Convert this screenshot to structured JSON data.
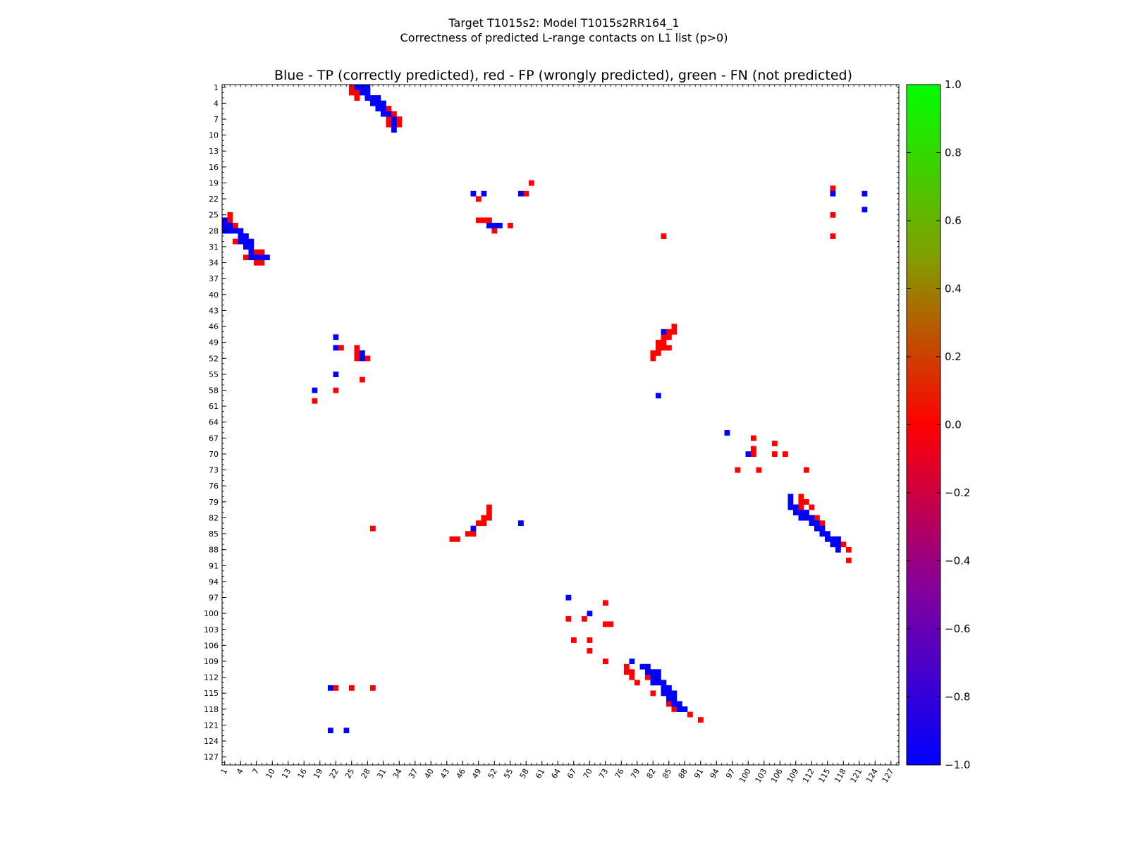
{
  "chart_data": {
    "type": "heatmap",
    "title": "Target T1015s2: Model T1015s2RR164_1",
    "title_line2": "Correctness of predicted L-range contacts on L1 list (p>0)",
    "subtitle": "Blue - TP (correctly predicted), red - FP (wrongly predicted), green - FN (not predicted)",
    "xlabel": "",
    "ylabel": "",
    "axis_range": [
      1,
      128
    ],
    "tick_labels": [
      "1",
      "4",
      "7",
      "10",
      "13",
      "16",
      "19",
      "22",
      "25",
      "28",
      "31",
      "34",
      "37",
      "40",
      "43",
      "46",
      "49",
      "52",
      "55",
      "58",
      "61",
      "64",
      "67",
      "70",
      "73",
      "76",
      "79",
      "82",
      "85",
      "88",
      "91",
      "94",
      "97",
      "100",
      "103",
      "106",
      "109",
      "112",
      "115",
      "118",
      "121",
      "124",
      "127"
    ],
    "colorbar": {
      "min": -1.0,
      "max": 1.0,
      "tick_labels": [
        "1.0",
        "0.8",
        "0.6",
        "0.4",
        "0.2",
        "0.0",
        "−0.2",
        "−0.4",
        "−0.6",
        "−0.8",
        "−1.0"
      ],
      "tick_values": [
        1.0,
        0.8,
        0.6,
        0.4,
        0.2,
        0.0,
        -0.2,
        -0.4,
        -0.6,
        -0.8,
        -1.0
      ],
      "colors": {
        "top": "#00ff00",
        "upper_mid": "#80a000",
        "mid": "#ff0000",
        "lower_mid": "#8000a0",
        "bottom": "#0000ff"
      }
    },
    "legend": {
      "tp": {
        "value": -1,
        "color": "#0000ff"
      },
      "fp": {
        "value": 0,
        "color": "#ff0000"
      },
      "fn": {
        "value": 1,
        "color": "#33cc00"
      }
    },
    "cells": {
      "tp": [
        [
          1,
          26
        ],
        [
          1,
          27
        ],
        [
          1,
          28
        ],
        [
          2,
          27
        ],
        [
          2,
          28
        ],
        [
          3,
          28
        ],
        [
          3,
          29
        ],
        [
          3,
          30
        ],
        [
          4,
          29
        ],
        [
          4,
          30
        ],
        [
          4,
          31
        ],
        [
          5,
          30
        ],
        [
          5,
          31
        ],
        [
          6,
          31
        ],
        [
          6,
          32
        ],
        [
          7,
          33
        ],
        [
          8,
          33
        ],
        [
          9,
          33
        ],
        [
          21,
          48
        ],
        [
          21,
          50
        ],
        [
          21,
          57
        ],
        [
          21,
          116
        ],
        [
          21,
          122
        ],
        [
          24,
          122
        ],
        [
          27,
          51
        ],
        [
          27,
          52
        ],
        [
          27,
          53
        ],
        [
          26,
          1
        ],
        [
          27,
          1
        ],
        [
          27,
          2
        ],
        [
          28,
          1
        ],
        [
          28,
          2
        ],
        [
          28,
          3
        ],
        [
          28,
          4
        ],
        [
          29,
          4
        ],
        [
          29,
          5
        ],
        [
          30,
          4
        ],
        [
          30,
          5
        ],
        [
          30,
          6
        ],
        [
          31,
          5
        ],
        [
          31,
          6
        ],
        [
          32,
          6
        ],
        [
          33,
          6
        ],
        [
          33,
          7
        ],
        [
          33,
          8
        ],
        [
          33,
          9
        ],
        [
          47,
          84
        ],
        [
          48,
          22
        ],
        [
          50,
          22
        ],
        [
          51,
          27
        ],
        [
          52,
          27
        ],
        [
          55,
          22
        ],
        [
          58,
          18
        ],
        [
          59,
          83
        ],
        [
          66,
          96
        ],
        [
          70,
          100
        ],
        [
          78,
          108
        ],
        [
          79,
          108
        ],
        [
          80,
          108
        ],
        [
          80,
          109
        ],
        [
          81,
          109
        ],
        [
          81,
          110
        ],
        [
          81,
          111
        ],
        [
          82,
          110
        ],
        [
          82,
          111
        ],
        [
          82,
          112
        ],
        [
          83,
          112
        ],
        [
          83,
          113
        ],
        [
          84,
          113
        ],
        [
          84,
          114
        ],
        [
          85,
          114
        ],
        [
          85,
          115
        ],
        [
          86,
          115
        ],
        [
          86,
          116
        ],
        [
          86,
          117
        ],
        [
          87,
          116
        ],
        [
          87,
          117
        ],
        [
          88,
          117
        ],
        [
          84,
          48
        ],
        [
          83,
          57
        ],
        [
          97,
          66
        ],
        [
          100,
          70
        ],
        [
          109,
          78
        ],
        [
          110,
          80
        ],
        [
          110,
          81
        ],
        [
          111,
          81
        ],
        [
          111,
          82
        ],
        [
          111,
          83
        ],
        [
          112,
          82
        ],
        [
          112,
          83
        ],
        [
          113,
          82
        ],
        [
          113,
          83
        ],
        [
          113,
          84
        ],
        [
          114,
          84
        ],
        [
          114,
          85
        ],
        [
          115,
          84
        ],
        [
          115,
          85
        ],
        [
          115,
          86
        ],
        [
          116,
          85
        ],
        [
          116,
          86
        ],
        [
          117,
          86
        ],
        [
          117,
          87
        ],
        [
          118,
          87
        ],
        [
          118,
          88
        ],
        [
          114,
          21
        ],
        [
          122,
          21
        ],
        [
          122,
          24
        ]
      ],
      "fp": [
        [
          1,
          25
        ],
        [
          2,
          25
        ],
        [
          2,
          26
        ],
        [
          3,
          26
        ],
        [
          5,
          32
        ],
        [
          6,
          33
        ],
        [
          7,
          32
        ],
        [
          7,
          34
        ],
        [
          8,
          32
        ],
        [
          8,
          34
        ],
        [
          19,
          59
        ],
        [
          21,
          58
        ],
        [
          22,
          49
        ],
        [
          26,
          49
        ],
        [
          26,
          50
        ],
        [
          26,
          51
        ],
        [
          27,
          55
        ],
        [
          28,
          52
        ],
        [
          29,
          84
        ],
        [
          20,
          116
        ],
        [
          25,
          116
        ],
        [
          29,
          116
        ],
        [
          25,
          2
        ],
        [
          26,
          1
        ],
        [
          26,
          2
        ],
        [
          27,
          3
        ],
        [
          30,
          3
        ],
        [
          32,
          7
        ],
        [
          32,
          8
        ],
        [
          33,
          5
        ],
        [
          34,
          7
        ],
        [
          34,
          8
        ],
        [
          46,
          86
        ],
        [
          47,
          85
        ],
        [
          47,
          86
        ],
        [
          48,
          84
        ],
        [
          48,
          85
        ],
        [
          49,
          83
        ],
        [
          49,
          84
        ],
        [
          50,
          83
        ],
        [
          50,
          84
        ],
        [
          50,
          85
        ],
        [
          51,
          82
        ],
        [
          51,
          83
        ],
        [
          52,
          82
        ],
        [
          50,
          23
        ],
        [
          50,
          26
        ],
        [
          51,
          26
        ],
        [
          52,
          26
        ],
        [
          52,
          28
        ],
        [
          56,
          27
        ],
        [
          58,
          22
        ],
        [
          60,
          18
        ],
        [
          67,
          101
        ],
        [
          68,
          105
        ],
        [
          69,
          101
        ],
        [
          70,
          101
        ],
        [
          70,
          105
        ],
        [
          70,
          107
        ],
        [
          73,
          98
        ],
        [
          73,
          102
        ],
        [
          73,
          111
        ],
        [
          78,
          110
        ],
        [
          79,
          110
        ],
        [
          79,
          111
        ],
        [
          80,
          109
        ],
        [
          80,
          110
        ],
        [
          80,
          112
        ],
        [
          81,
          111
        ],
        [
          82,
          112
        ],
        [
          82,
          113
        ],
        [
          83,
          113
        ],
        [
          83,
          114
        ],
        [
          84,
          114
        ],
        [
          86,
          117
        ],
        [
          87,
          118
        ],
        [
          88,
          119
        ],
        [
          90,
          119
        ],
        [
          80,
          51
        ],
        [
          81,
          51
        ],
        [
          82,
          50
        ],
        [
          82,
          51
        ],
        [
          83,
          49
        ],
        [
          83,
          50
        ],
        [
          84,
          48
        ],
        [
          85,
          47
        ],
        [
          85,
          48
        ],
        [
          86,
          44
        ],
        [
          86,
          45
        ],
        [
          84,
          29
        ],
        [
          98,
          73
        ],
        [
          101,
          66
        ],
        [
          101,
          69
        ],
        [
          102,
          73
        ],
        [
          102,
          74
        ],
        [
          105,
          67
        ],
        [
          105,
          70
        ],
        [
          107,
          70
        ],
        [
          110,
          77
        ],
        [
          111,
          77
        ],
        [
          111,
          78
        ],
        [
          112,
          78
        ],
        [
          113,
          79
        ],
        [
          109,
          73
        ],
        [
          112,
          81
        ],
        [
          115,
          82
        ],
        [
          117,
          85
        ],
        [
          118,
          86
        ],
        [
          118,
          87
        ],
        [
          119,
          89
        ],
        [
          120,
          91
        ],
        [
          114,
          22
        ],
        [
          114,
          25
        ],
        [
          114,
          29
        ]
      ]
    }
  }
}
